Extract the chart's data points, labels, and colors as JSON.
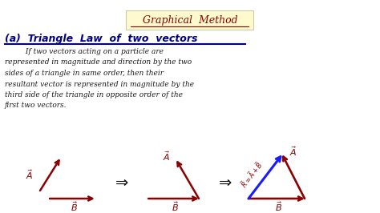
{
  "bg_color": "#ffffff",
  "title_box_color": "#fffacd",
  "title_text": "Graphical  Method",
  "title_color": "#8b0000",
  "subtitle_text": "(a)  Triangle  Law  of  two  vectors",
  "subtitle_color": "#00008b",
  "underline_color": "#00008b",
  "body_lines": [
    "         If two vectors acting on a particle are",
    "represented in magnitude and direction by the two",
    "sides of a triangle in same order, then their",
    "resultant vector is represented in magnitude by the",
    "third side of the triangle in opposite order of the",
    "first two vectors."
  ],
  "body_color": "#1a1a1a",
  "arrow_dark_red": "#8b0000",
  "arrow_blue": "#1a1aff",
  "arrow_black": "#111111",
  "fig_width": 4.74,
  "fig_height": 2.66,
  "dpi": 100
}
